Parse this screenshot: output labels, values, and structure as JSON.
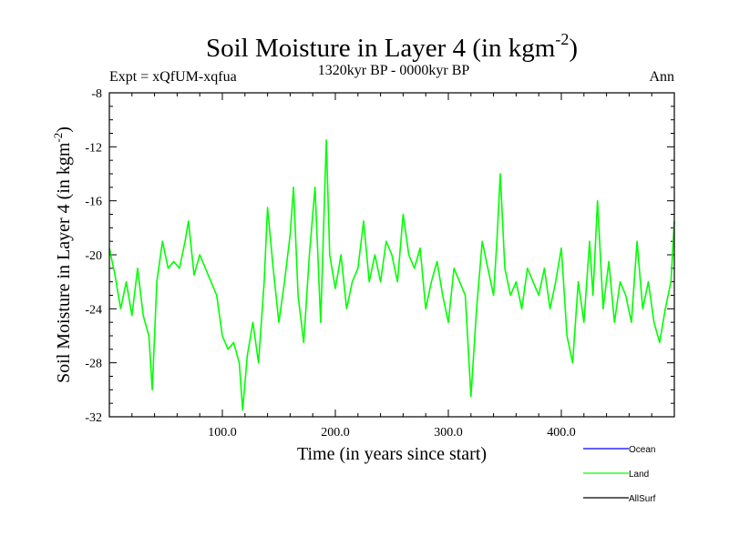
{
  "chart_data": {
    "type": "line",
    "title": "Soil Moisture in Layer 4 (in kgm",
    "title_sup": "-2",
    "title_close": ")",
    "subtitle_left": "Expt = xQfUM-xqfua",
    "subtitle_center": "1320kyr BP - 0000kyr BP",
    "subtitle_right": "Ann",
    "xlabel": "Time (in years since start)",
    "ylabel": "Soil Moisture in Layer 4 (in kgm",
    "ylabel_sup": "-2",
    "ylabel_close": ")",
    "xlim": [
      0,
      500
    ],
    "ylim": [
      -32,
      -8
    ],
    "xticks": [
      100,
      200,
      300,
      400
    ],
    "xtick_labels": [
      "100.0",
      "200.0",
      "300.0",
      "400.0"
    ],
    "yticks": [
      -32,
      -28,
      -24,
      -20,
      -16,
      -12,
      -8
    ],
    "ytick_labels": [
      "-32",
      "-28",
      "-24",
      "-20",
      "-16",
      "-12",
      "-8"
    ],
    "legend": [
      {
        "name": "Ocean",
        "color": "#0000ff"
      },
      {
        "name": "Land",
        "color": "#00ff00"
      },
      {
        "name": "AllSurf",
        "color": "#000000"
      }
    ],
    "series": [
      {
        "name": "Land",
        "color": "#00ff00",
        "x": [
          0,
          5,
          10,
          15,
          20,
          25,
          30,
          35,
          38,
          42,
          47,
          52,
          57,
          62,
          67,
          70,
          75,
          80,
          85,
          90,
          95,
          100,
          105,
          110,
          115,
          118,
          122,
          127,
          132,
          137,
          140,
          145,
          150,
          155,
          160,
          163,
          167,
          172,
          177,
          182,
          187,
          192,
          195,
          200,
          205,
          210,
          215,
          220,
          225,
          230,
          235,
          240,
          245,
          250,
          255,
          260,
          265,
          270,
          275,
          280,
          285,
          290,
          295,
          300,
          305,
          310,
          315,
          320,
          325,
          330,
          335,
          340,
          343,
          346,
          350,
          355,
          360,
          365,
          370,
          375,
          380,
          385,
          390,
          395,
          400,
          405,
          410,
          415,
          420,
          425,
          428,
          432,
          437,
          442,
          447,
          452,
          457,
          462,
          467,
          472,
          477,
          482,
          487,
          492,
          497,
          500
        ],
        "y": [
          -19.5,
          -21.5,
          -24,
          -22,
          -24.5,
          -21,
          -24.5,
          -26,
          -30,
          -22,
          -19,
          -21,
          -20.5,
          -21,
          -19,
          -17.5,
          -21.5,
          -20,
          -21,
          -22,
          -23,
          -26,
          -27,
          -26.5,
          -28,
          -31.5,
          -27.5,
          -25,
          -28,
          -22,
          -16.5,
          -21,
          -25,
          -22,
          -18.5,
          -15,
          -23,
          -26.5,
          -20,
          -15,
          -25,
          -11.5,
          -20,
          -22.5,
          -20,
          -24,
          -22,
          -21,
          -17.5,
          -22,
          -20,
          -22,
          -19,
          -20,
          -22,
          -17,
          -20,
          -21,
          -19.5,
          -24,
          -22,
          -20.5,
          -23,
          -25,
          -21,
          -22,
          -23,
          -30.5,
          -24,
          -19,
          -21,
          -23,
          -19,
          -14,
          -21,
          -23,
          -22,
          -24,
          -21,
          -22,
          -23,
          -21,
          -24,
          -22,
          -19.5,
          -26,
          -28,
          -22,
          -25,
          -19,
          -23,
          -16,
          -24,
          -20.5,
          -25,
          -22,
          -23,
          -25,
          -19,
          -24,
          -22,
          -25,
          -26.5,
          -24,
          -22,
          -17.5
        ]
      }
    ]
  }
}
